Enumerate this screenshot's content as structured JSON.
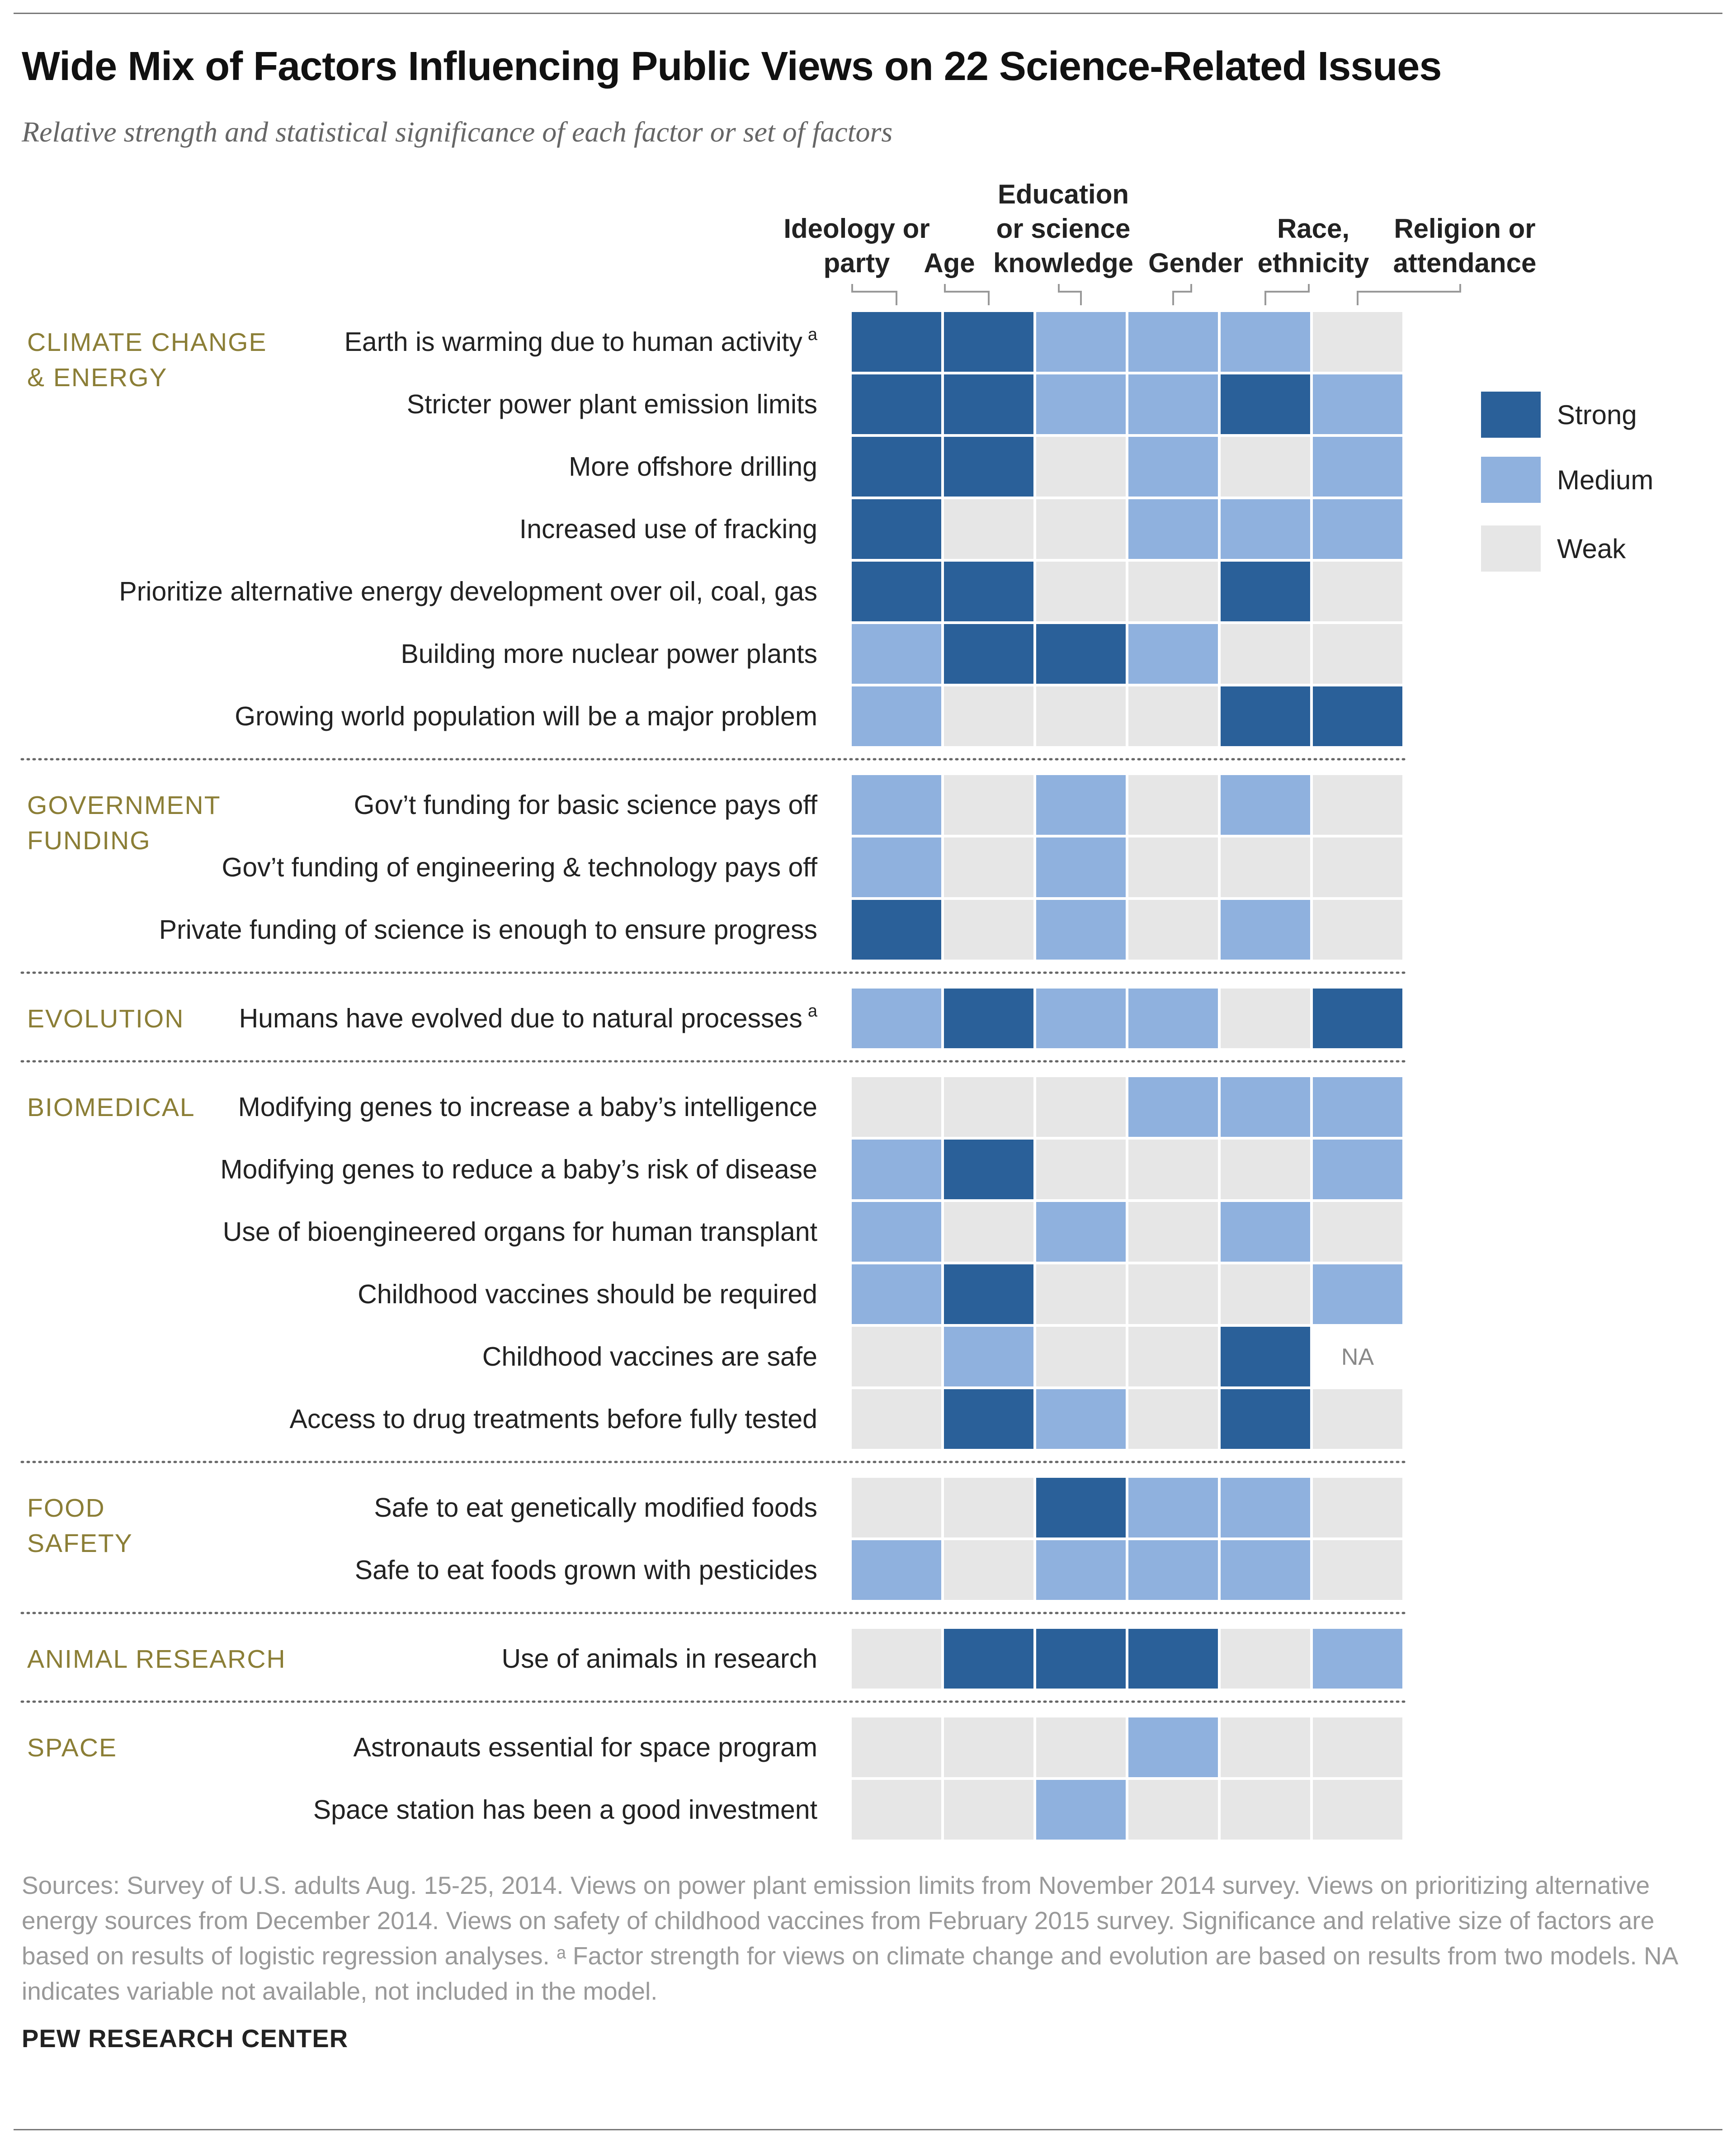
{
  "title": "Wide Mix of Factors Influencing Public Views on 22 Science-Related Issues",
  "subtitle": "Relative strength and statistical significance of each factor or set of factors",
  "colors": {
    "Strong": "#2a6099",
    "Medium": "#8fb1de",
    "Weak": "#e6e6e6",
    "NA": "#ffffff",
    "category": "#8B7E36"
  },
  "chart_data": {
    "type": "heatmap",
    "columns": [
      [
        "Ideology or",
        "party"
      ],
      [
        "Age"
      ],
      [
        "Education",
        "or science",
        "knowledge"
      ],
      [
        "Gender"
      ],
      [
        "Race,",
        "ethnicity"
      ],
      [
        "Religion or",
        "attendance"
      ]
    ],
    "legend": [
      "Strong",
      "Medium",
      "Weak"
    ],
    "legend_placement": "right",
    "na_label": "NA",
    "groups": [
      {
        "category": [
          "CLIMATE CHANGE",
          "& ENERGY"
        ],
        "rows": [
          {
            "label": "Earth is warming due to human activity",
            "superscript": "a",
            "values": [
              "Strong",
              "Strong",
              "Medium",
              "Medium",
              "Medium",
              "Weak"
            ]
          },
          {
            "label": "Stricter power plant emission limits",
            "values": [
              "Strong",
              "Strong",
              "Medium",
              "Medium",
              "Strong",
              "Medium"
            ]
          },
          {
            "label": "More offshore drilling",
            "values": [
              "Strong",
              "Strong",
              "Weak",
              "Medium",
              "Weak",
              "Medium"
            ]
          },
          {
            "label": "Increased use of fracking",
            "values": [
              "Strong",
              "Weak",
              "Weak",
              "Medium",
              "Medium",
              "Medium"
            ]
          },
          {
            "label": "Prioritize alternative energy development over oil, coal, gas",
            "values": [
              "Strong",
              "Strong",
              "Weak",
              "Weak",
              "Strong",
              "Weak"
            ]
          },
          {
            "label": "Building more nuclear power plants",
            "values": [
              "Medium",
              "Strong",
              "Strong",
              "Medium",
              "Weak",
              "Weak"
            ]
          },
          {
            "label": "Growing world population will be a major problem",
            "values": [
              "Medium",
              "Weak",
              "Weak",
              "Weak",
              "Strong",
              "Strong"
            ]
          }
        ]
      },
      {
        "category": [
          "GOVERNMENT",
          "FUNDING"
        ],
        "rows": [
          {
            "label": "Gov’t funding for basic science pays off",
            "values": [
              "Medium",
              "Weak",
              "Medium",
              "Weak",
              "Medium",
              "Weak"
            ]
          },
          {
            "label": "Gov’t funding of engineering & technology pays off",
            "values": [
              "Medium",
              "Weak",
              "Medium",
              "Weak",
              "Weak",
              "Weak"
            ]
          },
          {
            "label": "Private funding of science is enough to ensure progress",
            "values": [
              "Strong",
              "Weak",
              "Medium",
              "Weak",
              "Medium",
              "Weak"
            ]
          }
        ]
      },
      {
        "category": [
          "EVOLUTION"
        ],
        "rows": [
          {
            "label": "Humans have evolved due to natural processes",
            "superscript": "a",
            "values": [
              "Medium",
              "Strong",
              "Medium",
              "Medium",
              "Weak",
              "Strong"
            ]
          }
        ]
      },
      {
        "category": [
          "BIOMEDICAL"
        ],
        "rows": [
          {
            "label": "Modifying genes to increase a baby’s intelligence",
            "values": [
              "Weak",
              "Weak",
              "Weak",
              "Medium",
              "Medium",
              "Medium"
            ]
          },
          {
            "label": "Modifying genes to reduce a baby’s risk of disease",
            "values": [
              "Medium",
              "Strong",
              "Weak",
              "Weak",
              "Weak",
              "Medium"
            ]
          },
          {
            "label": "Use of bioengineered organs for human transplant",
            "values": [
              "Medium",
              "Weak",
              "Medium",
              "Weak",
              "Medium",
              "Weak"
            ]
          },
          {
            "label": "Childhood vaccines should be required",
            "values": [
              "Medium",
              "Strong",
              "Weak",
              "Weak",
              "Weak",
              "Medium"
            ]
          },
          {
            "label": "Childhood vaccines are safe",
            "values": [
              "Weak",
              "Medium",
              "Weak",
              "Weak",
              "Strong",
              "NA"
            ]
          },
          {
            "label": "Access to drug treatments before fully tested",
            "values": [
              "Weak",
              "Strong",
              "Medium",
              "Weak",
              "Strong",
              "Weak"
            ]
          }
        ]
      },
      {
        "category": [
          "FOOD",
          "SAFETY"
        ],
        "rows": [
          {
            "label": "Safe to eat genetically modified foods",
            "values": [
              "Weak",
              "Weak",
              "Strong",
              "Medium",
              "Medium",
              "Weak"
            ]
          },
          {
            "label": "Safe to eat foods grown with pesticides",
            "values": [
              "Medium",
              "Weak",
              "Medium",
              "Medium",
              "Medium",
              "Weak"
            ]
          }
        ]
      },
      {
        "category": [
          "ANIMAL RESEARCH"
        ],
        "rows": [
          {
            "label": "Use of animals in research",
            "values": [
              "Weak",
              "Strong",
              "Strong",
              "Strong",
              "Weak",
              "Medium"
            ]
          }
        ]
      },
      {
        "category": [
          "SPACE"
        ],
        "rows": [
          {
            "label": "Astronauts essential for space program",
            "values": [
              "Weak",
              "Weak",
              "Weak",
              "Medium",
              "Weak",
              "Weak"
            ]
          },
          {
            "label": "Space station has been a good investment",
            "values": [
              "Weak",
              "Weak",
              "Medium",
              "Weak",
              "Weak",
              "Weak"
            ]
          }
        ]
      }
    ]
  },
  "sources": "Sources: Survey of U.S. adults Aug. 15-25, 2014. Views on power plant emission limits from November 2014 survey. Views on prioritizing alternative energy sources from December 2014. Views on safety of childhood vaccines from February 2015 survey. Significance and relative size of factors are based on results of logistic regression analyses. ᵃ Factor strength for views on climate change and evolution are based on results from two models. NA indicates variable not available, not included in the model.",
  "credit": "PEW RESEARCH CENTER"
}
